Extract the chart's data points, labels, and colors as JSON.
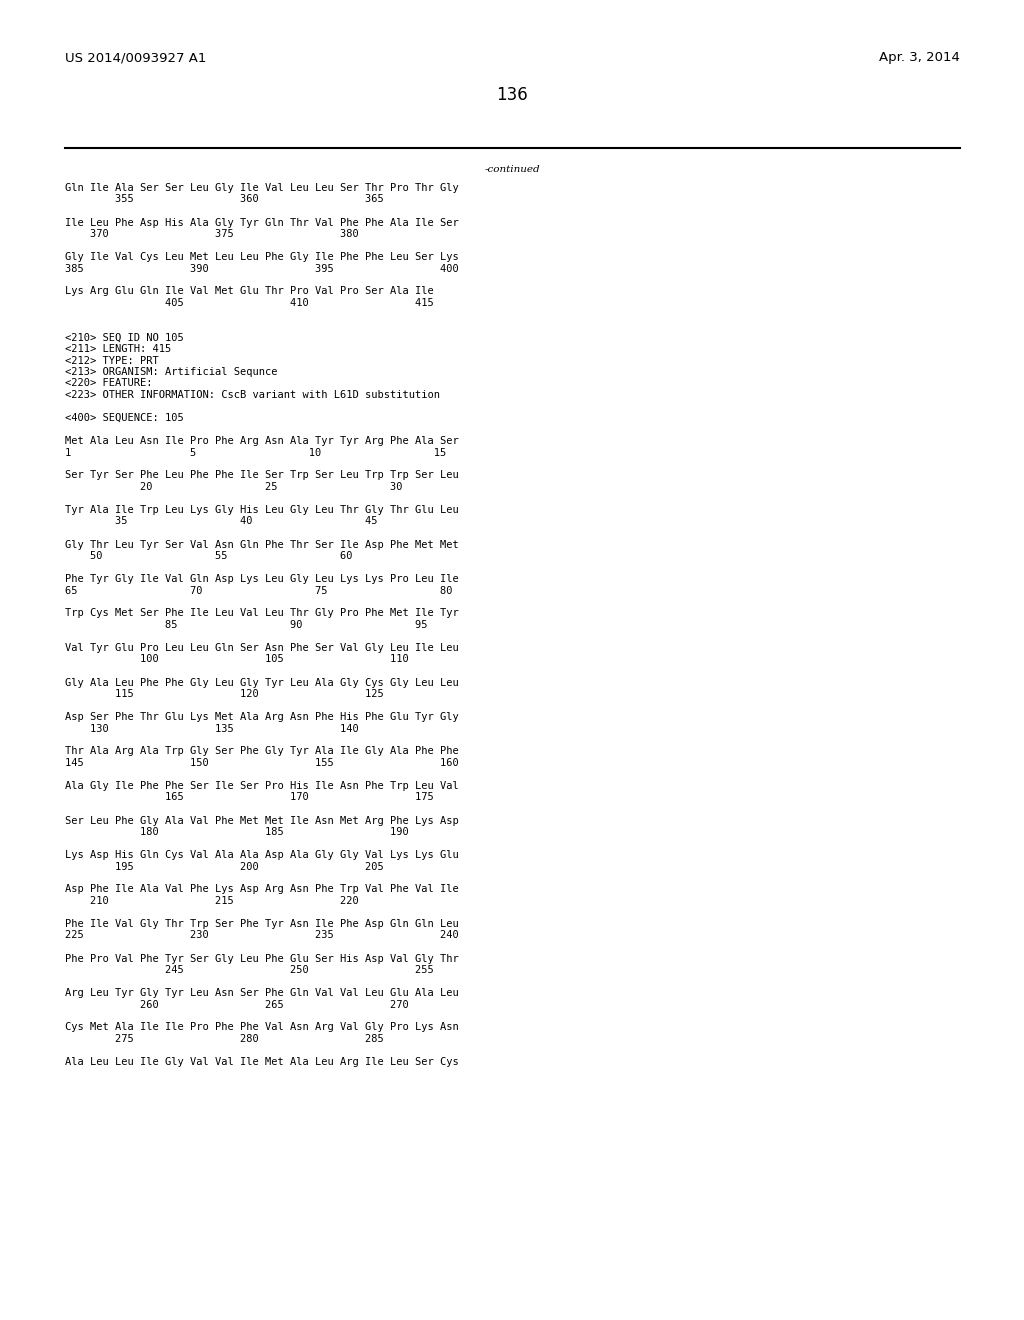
{
  "background_color": "#ffffff",
  "header_left": "US 2014/0093927 A1",
  "header_right": "Apr. 3, 2014",
  "page_number": "136",
  "continued_text": "-continued",
  "font_size": 7.5,
  "header_font_size": 9.5,
  "page_num_font_size": 12,
  "content": [
    "Gln Ile Ala Ser Ser Leu Gly Ile Val Leu Leu Ser Thr Pro Thr Gly",
    "        355                 360                 365",
    "",
    "Ile Leu Phe Asp His Ala Gly Tyr Gln Thr Val Phe Phe Ala Ile Ser",
    "    370                 375                 380",
    "",
    "Gly Ile Val Cys Leu Met Leu Leu Phe Gly Ile Phe Phe Leu Ser Lys",
    "385                 390                 395                 400",
    "",
    "Lys Arg Glu Gln Ile Val Met Glu Thr Pro Val Pro Ser Ala Ile",
    "                405                 410                 415",
    "",
    "",
    "<210> SEQ ID NO 105",
    "<211> LENGTH: 415",
    "<212> TYPE: PRT",
    "<213> ORGANISM: Artificial Sequnce",
    "<220> FEATURE:",
    "<223> OTHER INFORMATION: CscB variant with L61D substitution",
    "",
    "<400> SEQUENCE: 105",
    "",
    "Met Ala Leu Asn Ile Pro Phe Arg Asn Ala Tyr Tyr Arg Phe Ala Ser",
    "1                   5                  10                  15",
    "",
    "Ser Tyr Ser Phe Leu Phe Phe Ile Ser Trp Ser Leu Trp Trp Ser Leu",
    "            20                  25                  30",
    "",
    "Tyr Ala Ile Trp Leu Lys Gly His Leu Gly Leu Thr Gly Thr Glu Leu",
    "        35                  40                  45",
    "",
    "Gly Thr Leu Tyr Ser Val Asn Gln Phe Thr Ser Ile Asp Phe Met Met",
    "    50                  55                  60",
    "",
    "Phe Tyr Gly Ile Val Gln Asp Lys Leu Gly Leu Lys Lys Pro Leu Ile",
    "65                  70                  75                  80",
    "",
    "Trp Cys Met Ser Phe Ile Leu Val Leu Thr Gly Pro Phe Met Ile Tyr",
    "                85                  90                  95",
    "",
    "Val Tyr Glu Pro Leu Leu Gln Ser Asn Phe Ser Val Gly Leu Ile Leu",
    "            100                 105                 110",
    "",
    "Gly Ala Leu Phe Phe Gly Leu Gly Tyr Leu Ala Gly Cys Gly Leu Leu",
    "        115                 120                 125",
    "",
    "Asp Ser Phe Thr Glu Lys Met Ala Arg Asn Phe His Phe Glu Tyr Gly",
    "    130                 135                 140",
    "",
    "Thr Ala Arg Ala Trp Gly Ser Phe Gly Tyr Ala Ile Gly Ala Phe Phe",
    "145                 150                 155                 160",
    "",
    "Ala Gly Ile Phe Phe Ser Ile Ser Pro His Ile Asn Phe Trp Leu Val",
    "                165                 170                 175",
    "",
    "Ser Leu Phe Gly Ala Val Phe Met Met Ile Asn Met Arg Phe Lys Asp",
    "            180                 185                 190",
    "",
    "Lys Asp His Gln Cys Val Ala Ala Asp Ala Gly Gly Val Lys Lys Glu",
    "        195                 200                 205",
    "",
    "Asp Phe Ile Ala Val Phe Lys Asp Arg Asn Phe Trp Val Phe Val Ile",
    "    210                 215                 220",
    "",
    "Phe Ile Val Gly Thr Trp Ser Phe Tyr Asn Ile Phe Asp Gln Gln Leu",
    "225                 230                 235                 240",
    "",
    "Phe Pro Val Phe Tyr Ser Gly Leu Phe Glu Ser His Asp Val Gly Thr",
    "                245                 250                 255",
    "",
    "Arg Leu Tyr Gly Tyr Leu Asn Ser Phe Gln Val Val Leu Glu Ala Leu",
    "            260                 265                 270",
    "",
    "Cys Met Ala Ile Ile Pro Phe Phe Val Asn Arg Val Gly Pro Lys Asn",
    "        275                 280                 285",
    "",
    "Ala Leu Leu Ile Gly Val Val Ile Met Ala Leu Arg Ile Leu Ser Cys"
  ]
}
